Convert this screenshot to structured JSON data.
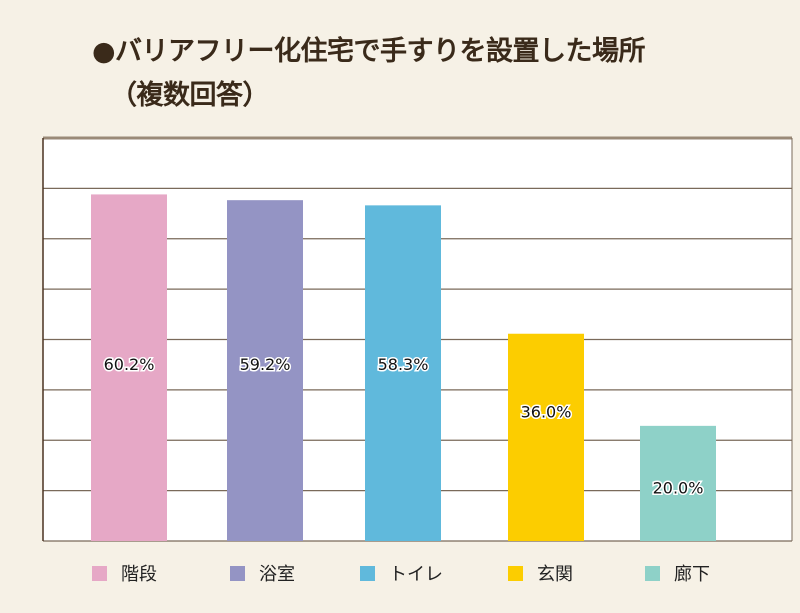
{
  "chart_data": {
    "type": "bar",
    "title_line1": "●バリアフリー化住宅で手すりを設置した場所",
    "title_line2": "（複数回答）",
    "categories": [
      "階段",
      "浴室",
      "トイレ",
      "玄関",
      "廊下"
    ],
    "values": [
      60.2,
      59.2,
      58.3,
      36.0,
      20.0
    ],
    "labels": [
      "60.2%",
      "59.2%",
      "58.3%",
      "36.0%",
      "20.0%"
    ],
    "colors": [
      "#e6a8c6",
      "#9494c4",
      "#60b9dc",
      "#fccd00",
      "#8ed1c8"
    ],
    "ylim": [
      0,
      70
    ],
    "grid": true,
    "legend": "bottom",
    "xlabel": "",
    "ylabel": ""
  }
}
